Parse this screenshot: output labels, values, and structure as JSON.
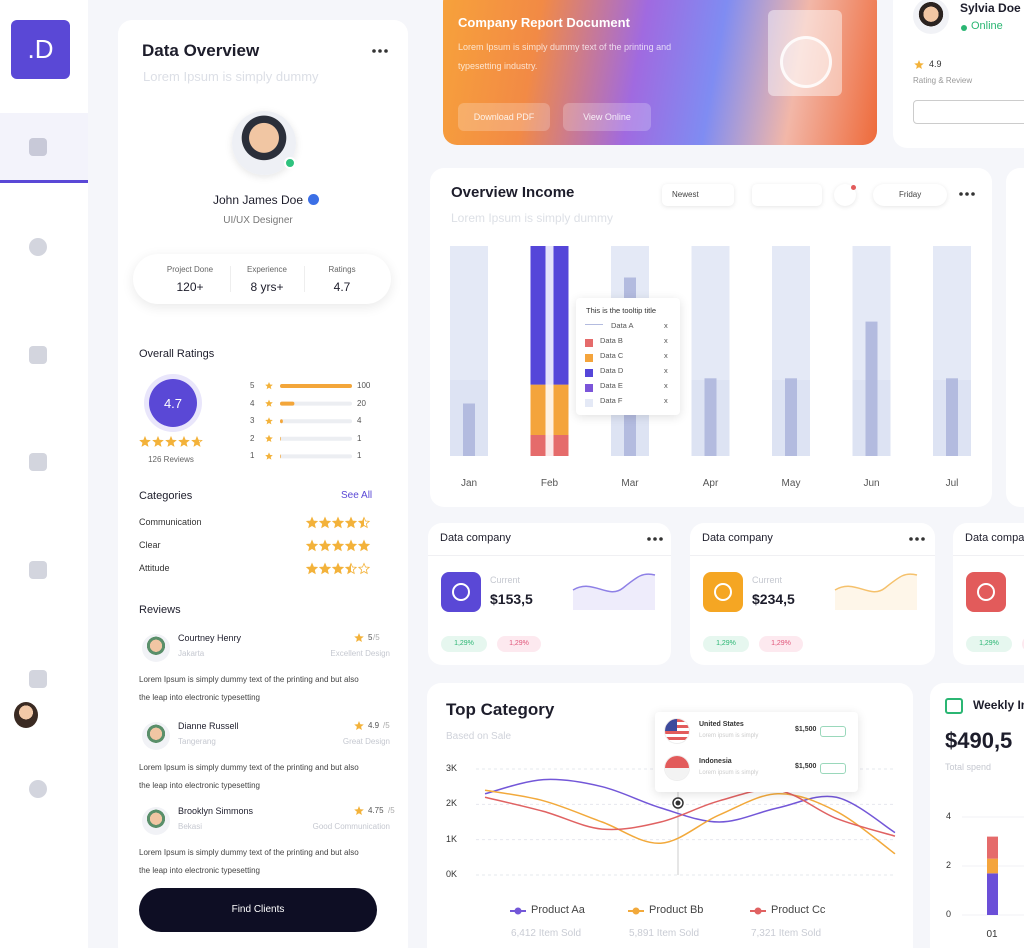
{
  "sidebar": {
    "logo": ".D"
  },
  "data_overview": {
    "title": "Data Overview",
    "subtitle": "Lorem Ipsum is simply dummy",
    "profile": {
      "name": "John James Doe",
      "role": "UI/UX Designer"
    },
    "stats": [
      {
        "label": "Project Done",
        "value": "120+"
      },
      {
        "label": "Experience",
        "value": "8 yrs+"
      },
      {
        "label": "Ratings",
        "value": "4.7"
      }
    ],
    "overall_ratings": {
      "title": "Overall Ratings",
      "score": 4.7,
      "reviews_count": "126 Reviews",
      "xlim": [
        0,
        100
      ],
      "bars": [
        {
          "stars": 5,
          "count": 100
        },
        {
          "stars": 4,
          "count": 20
        },
        {
          "stars": 3,
          "count": 4
        },
        {
          "stars": 2,
          "count": 1
        },
        {
          "stars": 1,
          "count": 1
        }
      ]
    },
    "categories": {
      "title": "Categories",
      "link": "See All",
      "items": [
        {
          "name": "Communication",
          "rating": 4.5
        },
        {
          "name": "Clear",
          "rating": 5
        },
        {
          "name": "Attitude",
          "rating": 3.5
        }
      ]
    },
    "reviews": {
      "title": "Reviews",
      "items": [
        {
          "name": "Courtney Henry",
          "location": "Jakarta",
          "rating": 5,
          "scale": "/5",
          "tag": "Excellent Design",
          "text": "Lorem Ipsum is simply dummy text of the printing and but also the leap into electronic typesetting"
        },
        {
          "name": "Dianne Russell",
          "location": "Tangerang",
          "rating": 4.9,
          "scale": "/5",
          "tag": "Great Design",
          "text": "Lorem Ipsum is simply dummy text of the printing and but also the leap into electronic typesetting"
        },
        {
          "name": "Brooklyn Simmons",
          "location": "Bekasi",
          "rating": 4.75,
          "scale": "/5",
          "tag": "Good Communication",
          "text": "Lorem Ipsum is simply dummy text of the printing and but also the leap into electronic typesetting"
        }
      ]
    },
    "button": "Find Clients"
  },
  "report": {
    "title": "Company Report Document",
    "text": "Lorem Ipsum is simply dummy text of the printing and typesetting industry.",
    "buttons": [
      "Download PDF",
      "View Online"
    ]
  },
  "user": {
    "name": "Sylvia Doe",
    "status": "Online",
    "rating": 4.9,
    "rating_label": "Rating & Review"
  },
  "overview_income": {
    "title": "Overview Income",
    "subtitle": "Lorem Ipsum is simply dummy",
    "filters": [
      "Newest",
      "Friday"
    ],
    "chart": {
      "type": "bar",
      "categories": [
        "Jan",
        "Feb",
        "Mar",
        "Apr",
        "May",
        "Jun",
        "Jul"
      ],
      "ylim": [
        0,
        100
      ],
      "series": [
        {
          "name": "Data A",
          "color": "#b3bbdf",
          "values": [
            25,
            null,
            85,
            37,
            37,
            64,
            37
          ]
        },
        {
          "name": "Data B",
          "color": "#e56b6b",
          "values": [
            null,
            10,
            null,
            null,
            null,
            null,
            null
          ]
        },
        {
          "name": "Data C",
          "color": "#f4a43c",
          "values": [
            null,
            24,
            null,
            null,
            null,
            null,
            null
          ]
        },
        {
          "name": "Data D",
          "color": "#5546d9",
          "values": [
            null,
            66,
            null,
            null,
            null,
            null,
            null
          ]
        },
        {
          "name": "Data E",
          "color": "#7b55d9"
        },
        {
          "name": "Data F",
          "color": "#e4e9f6"
        }
      ]
    },
    "tooltip": {
      "title": "This is the tooltip title",
      "mark": "x"
    }
  },
  "data_cards": [
    {
      "title": "Data company",
      "label": "Current",
      "value": "$153,5",
      "badges": [
        "1,29%",
        "1,29%"
      ]
    },
    {
      "title": "Data company",
      "label": "Current",
      "value": "$234,5",
      "badges": [
        "1,29%",
        "1,29%"
      ]
    },
    {
      "title": "Data company",
      "badges": [
        "1,29%",
        "1,29%"
      ]
    }
  ],
  "top_category": {
    "title": "Top Category",
    "subtitle": "Based on Sale",
    "chart": {
      "type": "line",
      "ylim": [
        0,
        3000
      ],
      "yticks": [
        {
          "value": 0,
          "label": "0K"
        },
        {
          "value": 1000,
          "label": "1K"
        },
        {
          "value": 2000,
          "label": "2K"
        },
        {
          "value": 3000,
          "label": "3K"
        }
      ],
      "series": [
        {
          "name": "Product Aa",
          "color": "#7357d8",
          "sold": "6,412 Item Sold",
          "values": [
            2300,
            2700,
            2500,
            1900,
            1500,
            1900,
            2200,
            1200
          ]
        },
        {
          "name": "Product Bb",
          "color": "#f2a93b",
          "sold": "5,891 Item Sold",
          "values": [
            2400,
            2100,
            1500,
            900,
            1700,
            2300,
            1800,
            600
          ]
        },
        {
          "name": "Product Cc",
          "color": "#e06262",
          "sold": "7,321 Item Sold",
          "values": [
            2200,
            1800,
            1300,
            1500,
            2100,
            2400,
            1600,
            1100
          ]
        }
      ]
    },
    "countries": [
      {
        "name": "United States",
        "text": "Lorem ipsum is simply",
        "amount": "$1,500"
      },
      {
        "name": "Indonesia",
        "text": "Lorem ipsum is simply",
        "amount": "$1,500"
      }
    ]
  },
  "weekly": {
    "title": "Weekly Income",
    "value": "$490,5",
    "label": "Total spend",
    "chart": {
      "type": "bar",
      "categories": [
        "01"
      ],
      "ylim": [
        0,
        4
      ],
      "yticks": [
        0,
        2,
        4
      ],
      "series": [
        {
          "color": "#6b4fd8",
          "values": [
            1.7
          ]
        },
        {
          "color": "#f4a43c",
          "values": [
            0.6
          ]
        },
        {
          "color": "#e56b6b",
          "values": [
            0.9
          ]
        }
      ]
    }
  }
}
